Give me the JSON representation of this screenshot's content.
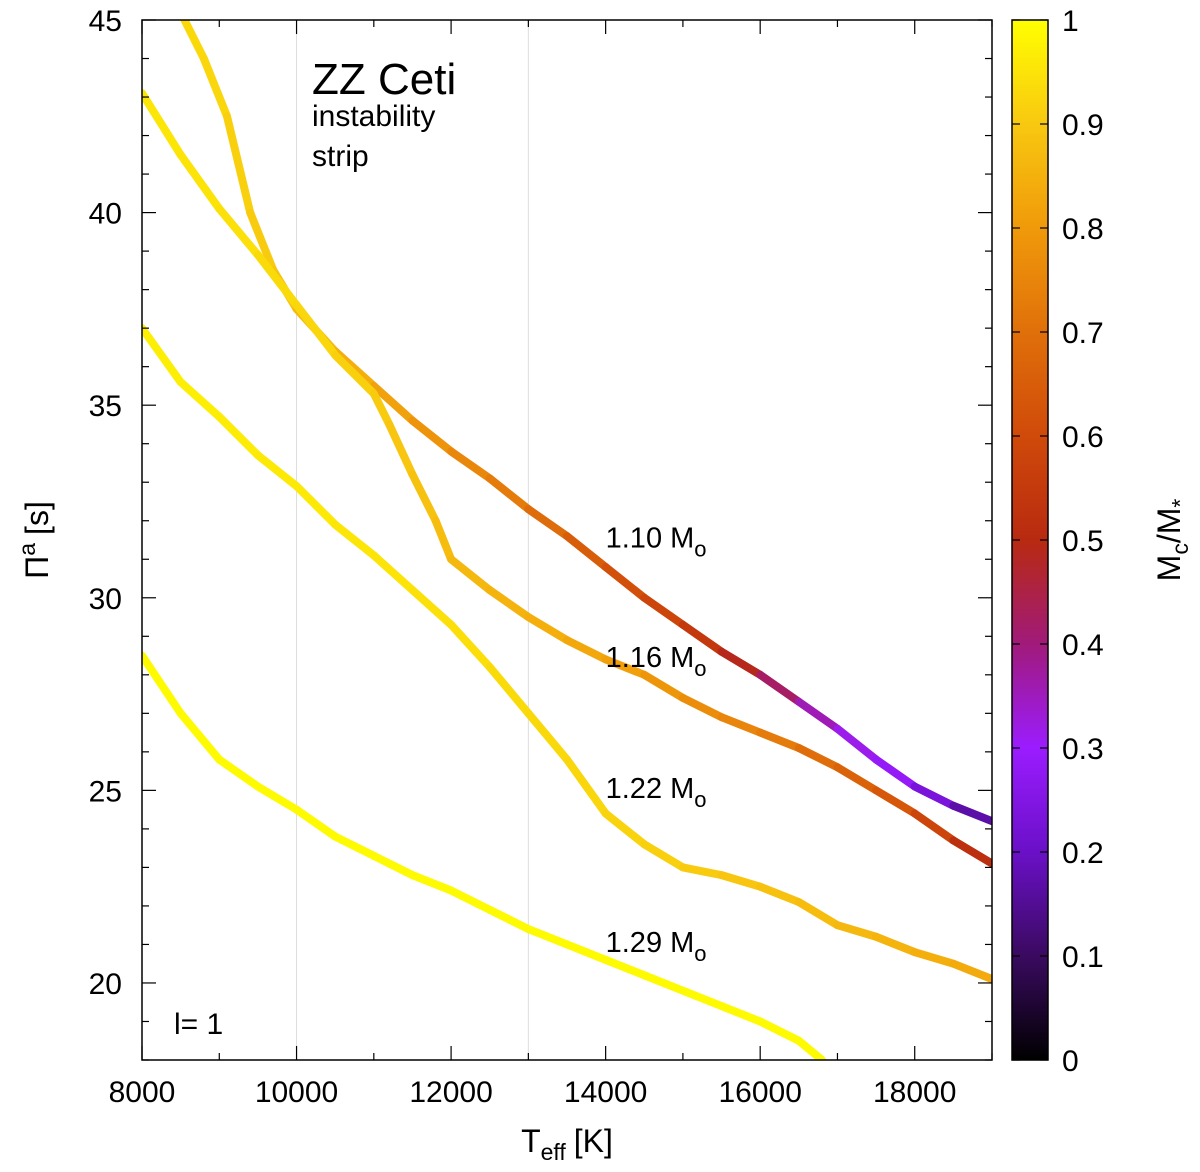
{
  "chart_data": {
    "type": "line",
    "title": "",
    "xlabel": "T",
    "xlabel_sub": "eff",
    "xlabel_unit": "[K]",
    "ylabel": "Π",
    "ylabel_sup": "a",
    "ylabel_unit": "[s]",
    "xlim": [
      8000,
      19000
    ],
    "ylim": [
      18,
      45
    ],
    "xticks": [
      8000,
      10000,
      12000,
      14000,
      16000,
      18000
    ],
    "yticks": [
      20,
      25,
      30,
      35,
      40,
      45
    ],
    "grid_lines_x": [
      10000,
      13000
    ],
    "annotations": {
      "strip_title": "ZZ Ceti",
      "strip_line1": "instability",
      "strip_line2": "strip",
      "mode": "l= 1"
    },
    "colorbar": {
      "label": "M",
      "label_sub1": "c",
      "label_mid": "/M",
      "label_sub2": "*",
      "range": [
        0,
        1
      ],
      "ticks": [
        "0",
        "0.1",
        "0.2",
        "0.3",
        "0.4",
        "0.5",
        "0.6",
        "0.7",
        "0.8",
        "0.9",
        "1"
      ],
      "colors": [
        "#000000",
        "#3a0a60",
        "#6a10c8",
        "#9b1cff",
        "#a11a7a",
        "#b82a10",
        "#d04a0a",
        "#e0700a",
        "#f09a0a",
        "#f8c810",
        "#ffff00"
      ]
    },
    "series": [
      {
        "name": "1.10",
        "label": "1.10 M",
        "label_sub": "o",
        "label_at": [
          14000,
          31.3
        ],
        "points": [
          [
            8550,
            45
          ],
          [
            8800,
            44
          ],
          [
            9100,
            42.5
          ],
          [
            9400,
            40
          ],
          [
            9700,
            38.5
          ],
          [
            10000,
            37.5
          ],
          [
            10500,
            36.4
          ],
          [
            11000,
            35.5
          ],
          [
            11500,
            34.6
          ],
          [
            12000,
            33.8
          ],
          [
            12500,
            33.1
          ],
          [
            13000,
            32.3
          ],
          [
            13500,
            31.6
          ],
          [
            14000,
            30.8
          ],
          [
            14500,
            30
          ],
          [
            15000,
            29.3
          ],
          [
            15500,
            28.6
          ],
          [
            16000,
            28
          ],
          [
            16500,
            27.3
          ],
          [
            17000,
            26.6
          ],
          [
            17500,
            25.8
          ],
          [
            18000,
            25.1
          ],
          [
            18500,
            24.6
          ],
          [
            19000,
            24.2
          ]
        ],
        "fraction": [
          0.93,
          0.93,
          0.92,
          0.91,
          0.9,
          0.88,
          0.86,
          0.83,
          0.8,
          0.77,
          0.74,
          0.71,
          0.67,
          0.63,
          0.6,
          0.57,
          0.52,
          0.46,
          0.38,
          0.33,
          0.3,
          0.27,
          0.2,
          0.14
        ]
      },
      {
        "name": "1.16",
        "label": "1.16 M",
        "label_sub": "o",
        "label_at": [
          14000,
          28.2
        ],
        "points": [
          [
            8000,
            43.1
          ],
          [
            8500,
            41.5
          ],
          [
            9000,
            40.1
          ],
          [
            9500,
            38.9
          ],
          [
            10000,
            37.6
          ],
          [
            10500,
            36.3
          ],
          [
            11000,
            35.3
          ],
          [
            11200,
            34.5
          ],
          [
            11500,
            33.2
          ],
          [
            11800,
            32
          ],
          [
            12000,
            31
          ],
          [
            12500,
            30.2
          ],
          [
            13000,
            29.5
          ],
          [
            13500,
            28.9
          ],
          [
            14000,
            28.4
          ],
          [
            14500,
            28
          ],
          [
            15000,
            27.4
          ],
          [
            15500,
            26.9
          ],
          [
            16000,
            26.5
          ],
          [
            16500,
            26.1
          ],
          [
            17000,
            25.6
          ],
          [
            17500,
            25
          ],
          [
            18000,
            24.4
          ],
          [
            18500,
            23.7
          ],
          [
            19000,
            23.1
          ]
        ],
        "fraction": [
          0.96,
          0.95,
          0.95,
          0.94,
          0.93,
          0.92,
          0.91,
          0.9,
          0.89,
          0.88,
          0.87,
          0.86,
          0.85,
          0.84,
          0.82,
          0.8,
          0.78,
          0.76,
          0.74,
          0.71,
          0.68,
          0.65,
          0.62,
          0.55,
          0.48
        ]
      },
      {
        "name": "1.22",
        "label": "1.22 M",
        "label_sub": "o",
        "label_at": [
          14000,
          24.8
        ],
        "points": [
          [
            8000,
            37
          ],
          [
            8500,
            35.6
          ],
          [
            9000,
            34.7
          ],
          [
            9500,
            33.7
          ],
          [
            10000,
            32.9
          ],
          [
            10500,
            31.9
          ],
          [
            11000,
            31.1
          ],
          [
            11500,
            30.2
          ],
          [
            12000,
            29.3
          ],
          [
            12500,
            28.2
          ],
          [
            13000,
            27
          ],
          [
            13500,
            25.8
          ],
          [
            14000,
            24.4
          ],
          [
            14500,
            23.6
          ],
          [
            15000,
            23
          ],
          [
            15500,
            22.8
          ],
          [
            16000,
            22.5
          ],
          [
            16500,
            22.1
          ],
          [
            17000,
            21.5
          ],
          [
            17500,
            21.2
          ],
          [
            18000,
            20.8
          ],
          [
            18500,
            20.5
          ],
          [
            19000,
            20.1
          ]
        ],
        "fraction": [
          0.97,
          0.97,
          0.97,
          0.96,
          0.96,
          0.96,
          0.95,
          0.95,
          0.94,
          0.94,
          0.93,
          0.93,
          0.92,
          0.92,
          0.91,
          0.9,
          0.89,
          0.88,
          0.87,
          0.86,
          0.85,
          0.84,
          0.83
        ]
      },
      {
        "name": "1.29",
        "label": "1.29 M",
        "label_sub": "o",
        "label_at": [
          14000,
          20.8
        ],
        "points": [
          [
            8000,
            28.5
          ],
          [
            8500,
            27
          ],
          [
            9000,
            25.8
          ],
          [
            9500,
            25.1
          ],
          [
            10000,
            24.5
          ],
          [
            10500,
            23.8
          ],
          [
            11000,
            23.3
          ],
          [
            11500,
            22.8
          ],
          [
            12000,
            22.4
          ],
          [
            12500,
            21.9
          ],
          [
            13000,
            21.4
          ],
          [
            13500,
            21
          ],
          [
            14000,
            20.6
          ],
          [
            14500,
            20.2
          ],
          [
            15000,
            19.8
          ],
          [
            15500,
            19.4
          ],
          [
            16000,
            19
          ],
          [
            16500,
            18.5
          ],
          [
            16800,
            18
          ]
        ],
        "fraction": [
          0.99,
          0.99,
          0.99,
          0.99,
          0.99,
          0.99,
          0.99,
          0.99,
          0.99,
          0.99,
          0.99,
          0.99,
          0.99,
          0.99,
          0.99,
          0.99,
          0.99,
          0.99,
          0.99
        ]
      }
    ]
  }
}
